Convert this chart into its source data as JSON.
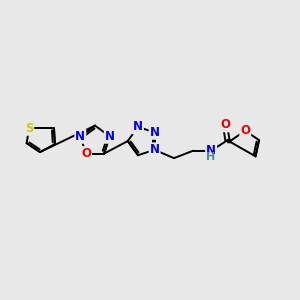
{
  "bg_color": "#e8e8e8",
  "figsize": [
    3.0,
    3.0
  ],
  "dpi": 100,
  "atom_colors": {
    "C": "#000000",
    "N": "#0000ee",
    "O": "#ee0000",
    "S": "#cccc00",
    "H": "#4a9090"
  },
  "bond_color": "#000000",
  "bond_lw": 1.4,
  "font_size": 8.5
}
